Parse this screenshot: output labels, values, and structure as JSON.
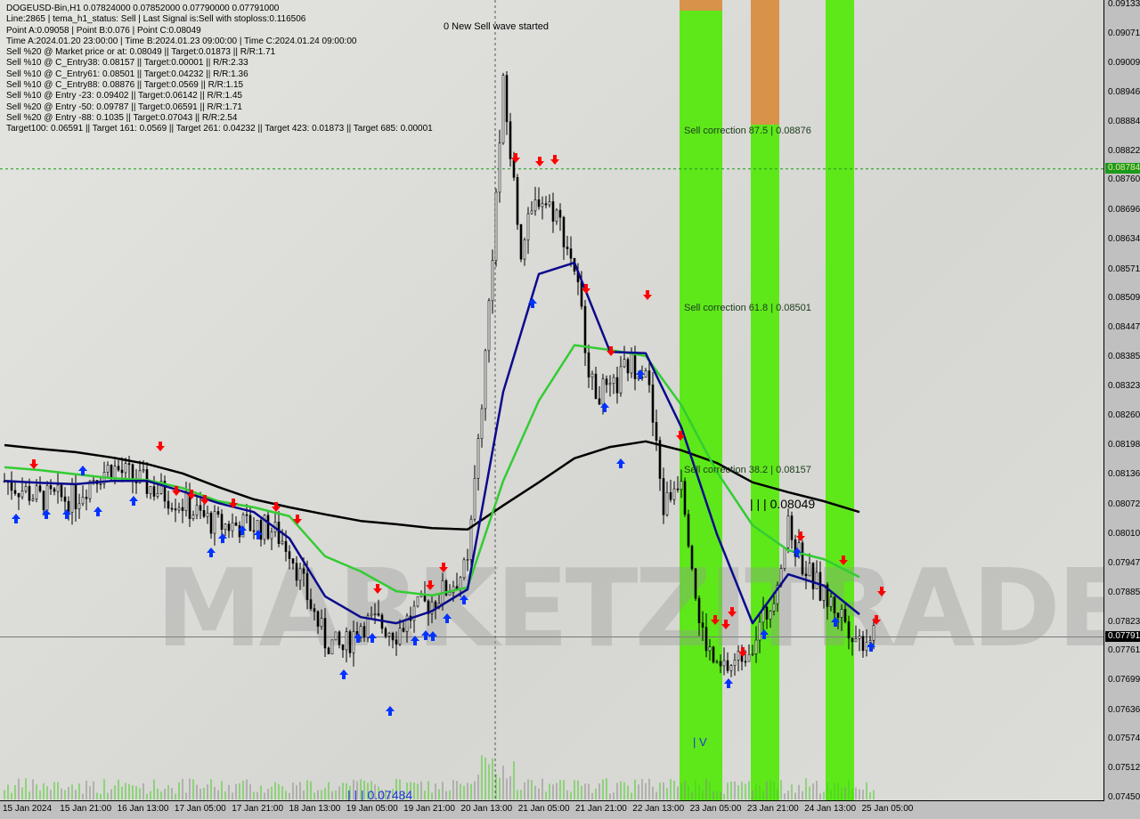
{
  "header": {
    "symbol_line": "DOGEUSD-Bin,H1  0.07824000 0.07852000 0.07790000 0.07791000",
    "lines": [
      "Line:2865 | tema_h1_status: Sell | Last Signal is:Sell with stoploss:0.116506",
      "Point A:0.09058 | Point B:0.076 | Point C:0.08049",
      "Time A:2024.01.20 23:00:00 | Time B:2024.01.23 09:00:00 | Time C:2024.01.24 09:00:00",
      "Sell %20 @ Market price or at: 0.08049 || Target:0.01873 || R/R:1.71",
      "Sell %10 @ C_Entry38: 0.08157 || Target:0.00001 || R/R:2.33",
      "Sell %10 @ C_Entry61: 0.08501 || Target:0.04232 || R/R:1.36",
      "Sell %10 @ C_Entry88: 0.08876 || Target:0.0569 || R/R:1.15",
      "Sell %10 @ Entry -23: 0.09402 || Target:0.06142 || R/R:1.45",
      "Sell %20 @ Entry -50: 0.09787 || Target:0.06591 || R/R:1.71",
      "Sell %20 @ Entry -88: 0.1035 || Target:0.07043 || R/R:2.54",
      "Target100: 0.06591 || Target 161: 0.0569 || Target 261: 0.04232 || Target 423: 0.01873 || Target 685: 0.00001"
    ]
  },
  "annotations": {
    "new_wave": "0 New Sell wave started",
    "corr875": "Sell correction 87.5 | 0.08876",
    "corr618": "Sell correction 61.8 | 0.08501",
    "corr382": "Sell correction 38.2 | 0.08157",
    "point_c": "| | | 0.08049",
    "point_low": "| | | 0.07484",
    "point_v": "| V",
    "watermark": "MARKETZITRADE"
  },
  "chart_data": {
    "type": "candlestick",
    "title": "DOGEUSD-Bin,H1",
    "ylim": [
      0.0745,
      0.09133
    ],
    "y_ticks": [
      "0.09133",
      "0.09071",
      "0.09009",
      "0.08946",
      "0.08884",
      "0.08822",
      "0.08760",
      "0.08696",
      "0.08634",
      "0.08571",
      "0.08509",
      "0.08447",
      "0.08385",
      "0.08323",
      "0.08260",
      "0.08198",
      "0.08136",
      "0.08072",
      "0.08010",
      "0.07947",
      "0.07885",
      "0.07823",
      "0.07761",
      "0.07699",
      "0.07636",
      "0.07574",
      "0.07512",
      "0.07450"
    ],
    "x_ticks": [
      "15 Jan 2024",
      "15 Jan 21:00",
      "16 Jan 13:00",
      "17 Jan 05:00",
      "17 Jan 21:00",
      "18 Jan 13:00",
      "19 Jan 05:00",
      "19 Jan 21:00",
      "20 Jan 13:00",
      "21 Jan 05:00",
      "21 Jan 21:00",
      "22 Jan 13:00",
      "23 Jan 05:00",
      "23 Jan 21:00",
      "24 Jan 13:00",
      "25 Jan 05:00"
    ],
    "current_price": "0.07791",
    "level_line": "0.08784",
    "close": [
      0.08122,
      0.08104,
      0.08085,
      0.08085,
      0.08085,
      0.08132,
      0.08151,
      0.08132,
      0.08113,
      0.08094,
      0.08075,
      0.08047,
      0.08028,
      0.08028,
      0.08028,
      0.08019,
      0.07981,
      0.07877,
      0.07783,
      0.07764,
      0.0782,
      0.0782,
      0.07801,
      0.07843,
      0.07867,
      0.07899,
      0.07937,
      0.08387,
      0.08954,
      0.08614,
      0.08728,
      0.0869,
      0.08576,
      0.08321,
      0.08302,
      0.08368,
      0.08368,
      0.08066,
      0.08141,
      0.0782,
      0.07716,
      0.07735,
      0.07783,
      0.07858,
      0.08019,
      0.07934,
      0.07877,
      0.07839,
      0.07783,
      0.07811
    ],
    "ma_black": [
      0.08198,
      0.0819,
      0.08183,
      0.08172,
      0.08158,
      0.08138,
      0.08109,
      0.08083,
      0.08066,
      0.08051,
      0.08037,
      0.0803,
      0.08022,
      0.08019,
      0.0807,
      0.08119,
      0.0817,
      0.08194,
      0.08206,
      0.08187,
      0.0816,
      0.08119,
      0.08098,
      0.08079,
      0.08056
    ],
    "ma_blue": [
      0.08122,
      0.08118,
      0.08115,
      0.08122,
      0.08122,
      0.081,
      0.08075,
      0.08056,
      0.08,
      0.07877,
      0.07833,
      0.0782,
      0.07846,
      0.07892,
      0.08311,
      0.08561,
      0.08585,
      0.08396,
      0.08393,
      0.08236,
      0.08009,
      0.0782,
      0.07924,
      0.079,
      0.07839
    ],
    "ma_green": [
      0.08151,
      0.08145,
      0.08136,
      0.08128,
      0.08124,
      0.08107,
      0.08079,
      0.08066,
      0.08047,
      0.07962,
      0.0793,
      0.07888,
      0.07879,
      0.07896,
      0.08122,
      0.08292,
      0.0841,
      0.084,
      0.08387,
      0.08283,
      0.08141,
      0.08028,
      0.07975,
      0.07956,
      0.07918
    ],
    "colors": {
      "zone": "#5ee81a",
      "zone_top": "#d8924a",
      "ma_black": "#000000",
      "ma_blue": "#0a0a8c",
      "ma_green": "#33cc33",
      "sell_arrow": "#ff0000",
      "buy_arrow": "#0033ff",
      "level": "#1a9a1a"
    }
  }
}
